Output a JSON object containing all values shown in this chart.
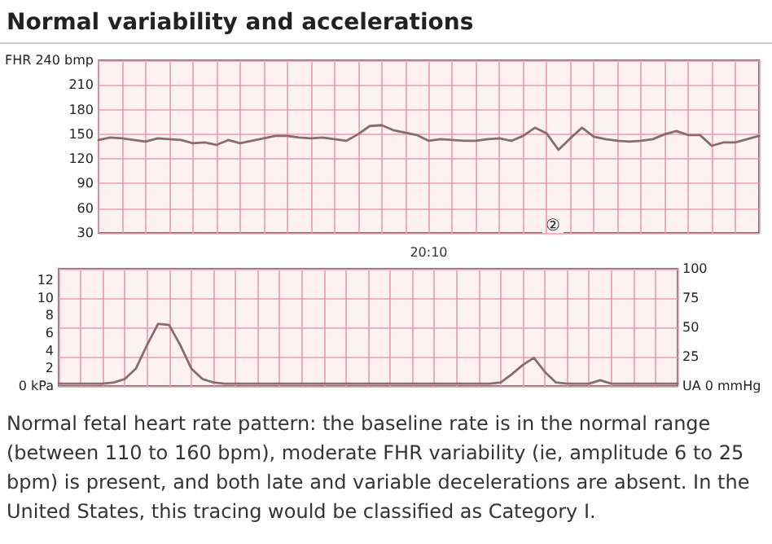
{
  "chart_data": [
    {
      "type": "line",
      "title": "Normal variability and accelerations",
      "categories": [
        null,
        null,
        null,
        null,
        null,
        null,
        null,
        null,
        null,
        null,
        null,
        null,
        null,
        null,
        null,
        null,
        null,
        null,
        null,
        null,
        null,
        null,
        null,
        null,
        null,
        null,
        null,
        null,
        "20:10",
        null,
        null,
        null,
        null,
        null,
        null,
        null,
        null,
        null,
        null,
        null,
        null,
        null,
        null,
        null,
        null,
        null,
        null,
        null,
        null,
        null,
        null,
        null,
        null,
        null,
        null,
        null,
        null
      ],
      "series": [
        {
          "color": "#8a6b6e",
          "values": [
            143,
            146,
            145,
            143,
            141,
            145,
            144,
            143,
            139,
            140,
            137,
            143,
            139,
            142,
            145,
            148,
            148,
            146,
            145,
            146,
            144,
            142,
            150,
            160,
            161,
            155,
            152,
            149,
            142,
            144,
            143,
            142,
            142,
            144,
            145,
            142,
            148,
            158,
            151,
            131,
            145,
            158,
            147,
            144,
            142,
            141,
            142,
            144,
            150,
            154,
            149,
            149,
            136,
            140,
            140,
            144,
            148
          ]
        }
      ],
      "ylim": [
        30,
        240
      ],
      "yticks": [
        30,
        60,
        90,
        120,
        150,
        180,
        210,
        {
          "value": 240,
          "label": "FHR 240 bmp"
        }
      ],
      "grid": true,
      "marker": "none",
      "line_style": "solid",
      "annotations": [
        "②"
      ]
    },
    {
      "type": "line",
      "categories": [
        null,
        null,
        null,
        null,
        null,
        null,
        null,
        null,
        null,
        null,
        null,
        null,
        null,
        null,
        null,
        null,
        null,
        null,
        null,
        null,
        null,
        null,
        null,
        null,
        null,
        null,
        null,
        null,
        null,
        null,
        null,
        null,
        null,
        null,
        null,
        null,
        null,
        null,
        null,
        null,
        null,
        null,
        null,
        null,
        null,
        null,
        null,
        null,
        null,
        null,
        null,
        null,
        null,
        null,
        null,
        null,
        null
      ],
      "series": [
        {
          "color": "#8a6b6e",
          "values": [
            2,
            2,
            2,
            2,
            2,
            3,
            6,
            15,
            35,
            53,
            52,
            35,
            15,
            6,
            3,
            2,
            2,
            2,
            2,
            2,
            2,
            2,
            2,
            2,
            2,
            2,
            2,
            2,
            2,
            2,
            2,
            2,
            2,
            2,
            2,
            2,
            2,
            2,
            2,
            2,
            3,
            10,
            18,
            24,
            12,
            3,
            2,
            2,
            2,
            5,
            2,
            2,
            2,
            2,
            2,
            2,
            2
          ]
        }
      ],
      "ylim": [
        0,
        100
      ],
      "yticks": [
        {
          "value": 0,
          "label": "UA 0 mmHg"
        },
        25,
        50,
        75,
        100
      ],
      "y2lim": [
        0,
        13.3
      ],
      "y2ticks": [
        {
          "value": 0,
          "label": "0 kPa"
        },
        2,
        4,
        6,
        8,
        10,
        12
      ],
      "grid": true,
      "marker": "none",
      "line_style": "solid",
      "annotations": [
        "Normal fetal heart rate pattern: the baseline rate is in the normal range (between 110 to 160 bpm), moderate FHR variability (ie, amplitude 6 to 25 bpm) is present, and both late and variable decelerations are absent. In the United States, this tracing would be classified as Category I."
      ]
    }
  ]
}
